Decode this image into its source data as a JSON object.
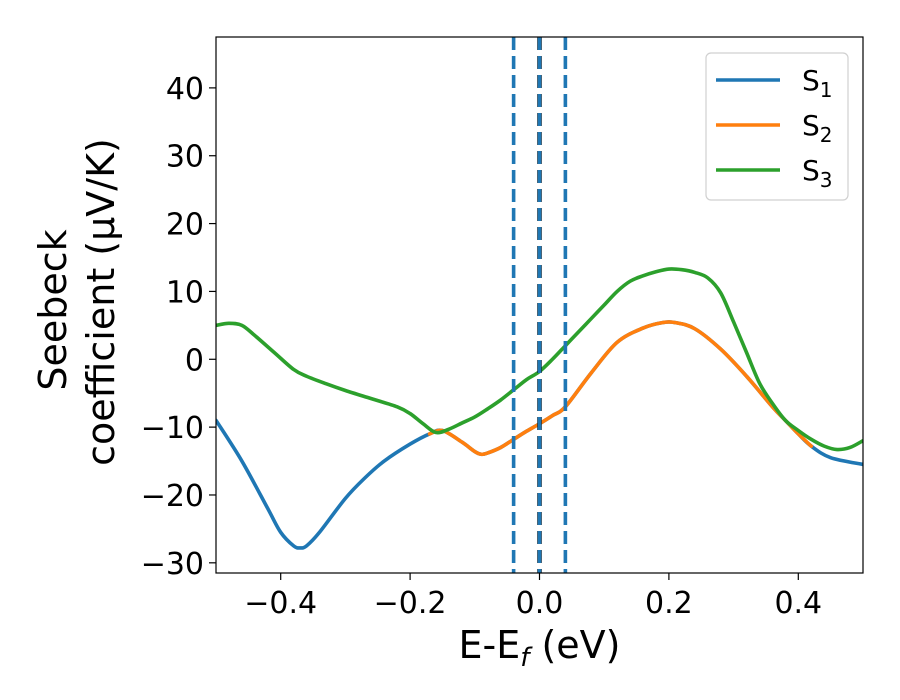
{
  "chart_data": {
    "type": "line",
    "xlabel": "E-E",
    "xlabel_sub": "f",
    "xlabel_unit": "(eV)",
    "ylabel_line1": "Seebeck",
    "ylabel_line2": "coefficient  (μV/K)",
    "xlim": [
      -0.5,
      0.5
    ],
    "ylim": [
      -31.5,
      47.5
    ],
    "xticks": [
      -0.4,
      -0.2,
      0.0,
      0.2,
      0.4
    ],
    "xtick_labels": [
      "−0.4",
      "−0.2",
      "0.0",
      "0.2",
      "0.4"
    ],
    "yticks": [
      -30,
      -20,
      -10,
      0,
      10,
      20,
      30,
      40
    ],
    "ytick_labels": [
      "−30",
      "−20",
      "−10",
      "0",
      "10",
      "20",
      "30",
      "40"
    ],
    "grid": false,
    "legend_position": "top-right",
    "vlines": [
      {
        "x": -0.04,
        "style": "dashed",
        "color": "#1f77b4"
      },
      {
        "x": 0.0,
        "style": "dashed",
        "color": "#000000"
      },
      {
        "x": 0.0,
        "style": "dashed",
        "color": "#1f77b4"
      },
      {
        "x": 0.04,
        "style": "dashed",
        "color": "#1f77b4"
      }
    ],
    "series": [
      {
        "name": "S",
        "name_sub": "1",
        "color": "#1f77b4",
        "x": [
          -0.5,
          -0.46,
          -0.42,
          -0.4,
          -0.38,
          -0.37,
          -0.36,
          -0.34,
          -0.3,
          -0.27,
          -0.24,
          -0.2,
          -0.17,
          -0.15,
          -0.12,
          -0.1,
          -0.09,
          -0.08,
          -0.06,
          -0.04,
          -0.02,
          0.0,
          0.02,
          0.04,
          0.08,
          0.12,
          0.16,
          0.19,
          0.21,
          0.24,
          0.28,
          0.32,
          0.36,
          0.38,
          0.4,
          0.42,
          0.45,
          0.5
        ],
        "y": [
          -9,
          -15,
          -22,
          -25.5,
          -27.5,
          -27.8,
          -27.5,
          -25.5,
          -20.5,
          -17.5,
          -15,
          -12.5,
          -11,
          -10.5,
          -12.2,
          -13.6,
          -14,
          -13.8,
          -13,
          -11.8,
          -10.6,
          -9.5,
          -8.3,
          -7,
          -2,
          2.5,
          4.6,
          5.4,
          5.4,
          4.5,
          1.5,
          -2.5,
          -7,
          -9,
          -11,
          -12.8,
          -14.5,
          -15.5
        ]
      },
      {
        "name": "S",
        "name_sub": "2",
        "color": "#ff7f0e",
        "x": [
          -0.17,
          -0.15,
          -0.12,
          -0.1,
          -0.09,
          -0.08,
          -0.06,
          -0.04,
          -0.02,
          0.0,
          0.02,
          0.04,
          0.08,
          0.12,
          0.16,
          0.19,
          0.21,
          0.24,
          0.28,
          0.32,
          0.36,
          0.38,
          0.4,
          0.42
        ],
        "y": [
          -11,
          -10.5,
          -12.2,
          -13.6,
          -14,
          -13.8,
          -13,
          -11.8,
          -10.6,
          -9.5,
          -8.3,
          -7,
          -2,
          2.5,
          4.6,
          5.4,
          5.4,
          4.5,
          1.5,
          -2.5,
          -7,
          -9,
          -11,
          -12.8
        ]
      },
      {
        "name": "S",
        "name_sub": "3",
        "color": "#2ca02c",
        "x": [
          -0.5,
          -0.48,
          -0.46,
          -0.44,
          -0.41,
          -0.38,
          -0.36,
          -0.33,
          -0.3,
          -0.26,
          -0.22,
          -0.2,
          -0.18,
          -0.16,
          -0.14,
          -0.12,
          -0.1,
          -0.08,
          -0.06,
          -0.04,
          -0.02,
          0.0,
          0.02,
          0.04,
          0.06,
          0.08,
          0.1,
          0.12,
          0.14,
          0.16,
          0.18,
          0.2,
          0.22,
          0.24,
          0.26,
          0.28,
          0.3,
          0.32,
          0.34,
          0.36,
          0.38,
          0.4,
          0.42,
          0.44,
          0.46,
          0.48,
          0.5
        ],
        "y": [
          5,
          5.3,
          5,
          3.5,
          1,
          -1.5,
          -2.5,
          -3.6,
          -4.6,
          -5.8,
          -7,
          -8,
          -9.5,
          -10.8,
          -10.3,
          -9.4,
          -8.5,
          -7.3,
          -6,
          -4.5,
          -3,
          -1.8,
          0,
          2,
          4,
          6,
          8,
          10,
          11.5,
          12.3,
          12.9,
          13.3,
          13.2,
          12.8,
          12,
          9.8,
          5.5,
          1,
          -3.5,
          -6.5,
          -9,
          -10.5,
          -11.8,
          -12.8,
          -13.3,
          -13,
          -12
        ]
      }
    ]
  }
}
